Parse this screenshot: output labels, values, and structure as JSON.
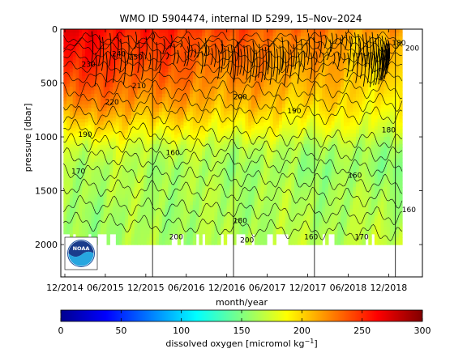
{
  "chart_data": {
    "type": "heatmap",
    "title": "WMO ID 5904474, internal ID 5299, 15–Nov–2024",
    "xlabel": "month/year",
    "ylabel": "pressure [dbar]",
    "x_ticks": [
      "12/2014",
      "06/2015",
      "12/2015",
      "06/2016",
      "12/2016",
      "06/2017",
      "12/2017",
      "06/2018",
      "12/2018"
    ],
    "x_tick_months": [
      0,
      6,
      12,
      18,
      24,
      30,
      36,
      42,
      48
    ],
    "xlim_months": [
      -0.6,
      53
    ],
    "y_ticks": [
      0,
      500,
      1000,
      1500,
      2000
    ],
    "ylim": [
      0,
      2300
    ],
    "y_reversed": true,
    "year_boundaries_months": [
      13,
      25,
      37,
      49
    ],
    "colorbar": {
      "label": "dissolved oxygen [micromol kg",
      "label_superscript": "−1",
      "label_end": "]",
      "ticks": [
        0,
        50,
        100,
        150,
        200,
        250,
        300
      ],
      "range": [
        0,
        300
      ],
      "colormap": "jet"
    },
    "depth_profile": {
      "pressure": [
        0,
        100,
        300,
        500,
        700,
        900,
        1100,
        1300,
        1500,
        1700,
        2000
      ],
      "oxygen_early": [
        268,
        262,
        255,
        242,
        225,
        200,
        175,
        165,
        165,
        160,
        160
      ],
      "oxygen_late": [
        215,
        205,
        202,
        198,
        190,
        178,
        160,
        155,
        162,
        165,
        170
      ]
    },
    "contour_labels": [
      {
        "text": "230",
        "t": 3.5,
        "p": 350
      },
      {
        "text": "240",
        "t": 8,
        "p": 250
      },
      {
        "text": "220",
        "t": 7,
        "p": 700
      },
      {
        "text": "190",
        "t": 3,
        "p": 1000
      },
      {
        "text": "160",
        "t": 16,
        "p": 1170
      },
      {
        "text": "170",
        "t": 2,
        "p": 1340
      },
      {
        "text": "200",
        "t": 16.5,
        "p": 1950
      },
      {
        "text": "210",
        "t": 11,
        "p": 550
      },
      {
        "text": "200",
        "t": 26,
        "p": 650
      },
      {
        "text": "190",
        "t": 34,
        "p": 780
      },
      {
        "text": "180",
        "t": 48,
        "p": 960
      },
      {
        "text": "160",
        "t": 43,
        "p": 1380
      },
      {
        "text": "180",
        "t": 26,
        "p": 1800
      },
      {
        "text": "160",
        "t": 36.5,
        "p": 1950
      },
      {
        "text": "170",
        "t": 44,
        "p": 1950
      },
      {
        "text": "160",
        "t": 51,
        "p": 1700
      },
      {
        "text": "200",
        "t": 51.5,
        "p": 200
      },
      {
        "text": "180",
        "t": 49.5,
        "p": 150
      },
      {
        "text": "250",
        "t": 10.5,
        "p": 280
      },
      {
        "text": "200",
        "t": 27,
        "p": 1980
      }
    ],
    "logo_text": "NOAA"
  }
}
